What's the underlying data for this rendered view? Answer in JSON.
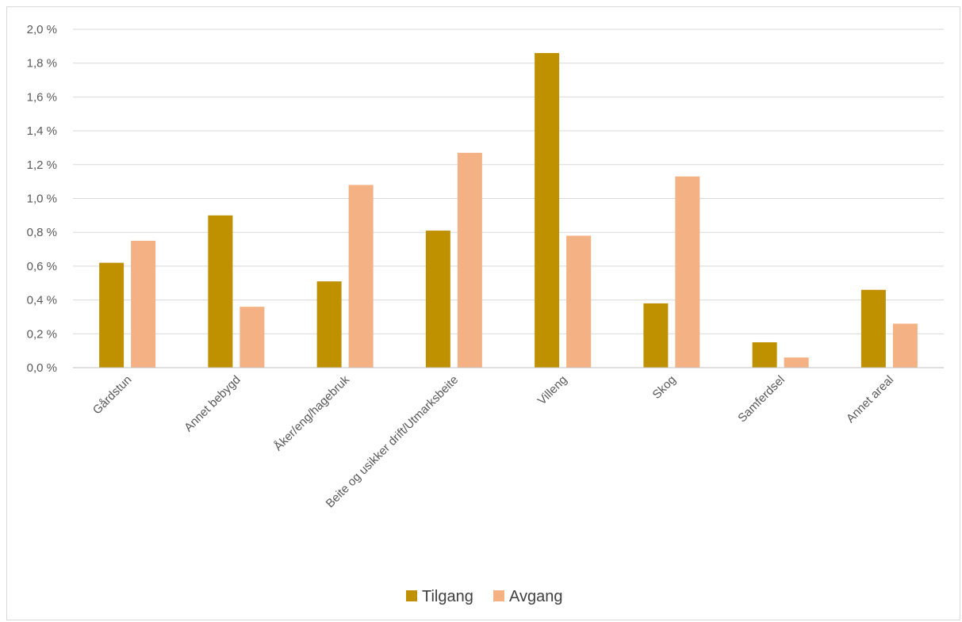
{
  "chart_data": {
    "type": "bar",
    "title": "",
    "xlabel": "",
    "ylabel": "",
    "categories": [
      "Gårdstun",
      "Annet bebygd",
      "Åker/eng/hagebruk",
      "Beite og usikker drift/Utmarksbeite",
      "Villeng",
      "Skog",
      "Samferdsel",
      "Annet areal"
    ],
    "series": [
      {
        "name": "Tilgang",
        "color": "#bf9000",
        "values": [
          0.62,
          0.9,
          0.51,
          0.81,
          1.86,
          0.38,
          0.15,
          0.46
        ]
      },
      {
        "name": "Avgang",
        "color": "#f4b183",
        "values": [
          0.75,
          0.36,
          1.08,
          1.27,
          0.78,
          1.13,
          0.06,
          0.26
        ]
      }
    ],
    "ylim": [
      0,
      2.0
    ],
    "ytick_step": 0.2,
    "yticks": [
      "0,0 %",
      "0,2 %",
      "0,4 %",
      "0,6 %",
      "0,8 %",
      "1,0 %",
      "1,2 %",
      "1,4 %",
      "1,6 %",
      "1,8 %",
      "2,0 %"
    ],
    "grid": true,
    "legend_position": "bottom"
  }
}
